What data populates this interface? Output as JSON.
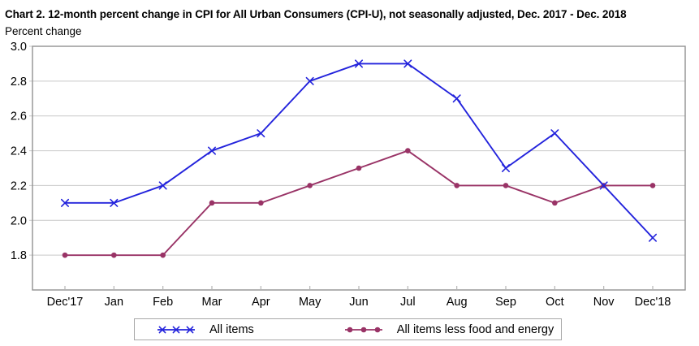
{
  "title": "Chart 2. 12-month percent change in CPI for All Urban Consumers (CPI-U), not seasonally adjusted, Dec. 2017 - Dec. 2018",
  "axis_unit_label": "Percent change",
  "chart_data": {
    "type": "line",
    "title": "Chart 2. 12-month percent change in CPI for All Urban Consumers (CPI-U), not seasonally adjusted, Dec. 2017 - Dec. 2018",
    "ylabel": "Percent change",
    "xlabel": "",
    "categories": [
      "Dec'17",
      "Jan",
      "Feb",
      "Mar",
      "Apr",
      "May",
      "Jun",
      "Jul",
      "Aug",
      "Sep",
      "Oct",
      "Nov",
      "Dec'18"
    ],
    "series": [
      {
        "name": "All items",
        "color": "#2323dc",
        "marker": "x",
        "values": [
          2.1,
          2.1,
          2.2,
          2.4,
          2.5,
          2.8,
          2.9,
          2.9,
          2.7,
          2.3,
          2.5,
          2.2,
          1.9
        ]
      },
      {
        "name": "All items less food and energy",
        "color": "#993366",
        "marker": "dot",
        "values": [
          1.8,
          1.8,
          1.8,
          2.1,
          2.1,
          2.2,
          2.3,
          2.4,
          2.2,
          2.2,
          2.1,
          2.2,
          2.2
        ]
      }
    ],
    "y_ticks": [
      "3.0",
      "2.8",
      "2.6",
      "2.4",
      "2.2",
      "2.0",
      "1.8"
    ],
    "ylim": [
      1.6,
      3.0
    ],
    "grid": true,
    "legend_position": "bottom",
    "styles": {
      "grid_color": "#c9c9c9",
      "frame_color": "#919191",
      "tick_color": "#b5b5b5",
      "text_color": "#000000"
    }
  }
}
